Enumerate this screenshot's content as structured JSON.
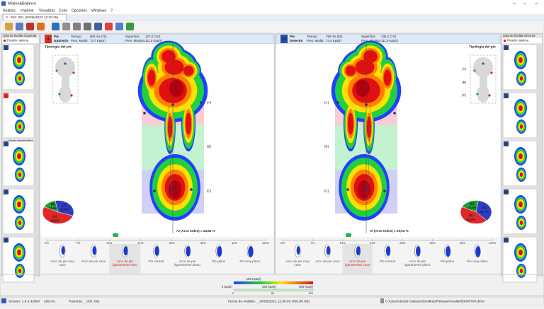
{
  "window": {
    "title": "Motion&Balance"
  },
  "menu": [
    "Análisis",
    "Imprimir",
    "Visualizar",
    "Color",
    "Opciones",
    "Windows",
    "?"
  ],
  "tab": "0 - 002: 001 (20/05/2022 12:30:45)",
  "left_list": {
    "title": "Lista de huellas izquierda",
    "mode": "Presión máxima",
    "items": [
      "3",
      "4",
      "6",
      "7",
      "8"
    ],
    "caption": "Huella característica"
  },
  "right_list": {
    "title": "Lista de huellas derecha",
    "mode": "Presión máxima",
    "items": [
      "3",
      "5",
      "8",
      "10",
      "13"
    ]
  },
  "feet": [
    {
      "number": "4",
      "color": "#d83020",
      "side": [
        "Pie",
        "Izquierdo"
      ],
      "stats": [
        [
          "Tiempo:",
          "800 ms (72)"
        ],
        [
          "Superficie:",
          "127,0 Cm2"
        ],
        [
          "Pres. Media:",
          "73,7 Kpa(r)"
        ],
        [
          "Pres. Máxima:",
          "111,0 Kpa(r)"
        ]
      ],
      "typology": "Tipología del pie",
      "zones": [
        "(A)",
        "(B)",
        "(C)"
      ],
      "pie": [
        {
          "name": "(B)",
          "value": 14.6,
          "value_label": "14,6%",
          "color": "#1e9e2e"
        },
        {
          "name": "(C)",
          "value": 32.9,
          "value_label": "32,9%",
          "color": "#2a3ec8"
        },
        {
          "name": "(A)",
          "value": 52.5,
          "value_label": "52,5%",
          "color": "#e02828"
        }
      ],
      "arch_index": "AI (Arco Index) = 34,55 %"
    },
    {
      "number": "13",
      "color": "#2050b0",
      "side": [
        "Pie",
        "Derecho"
      ],
      "stats": [
        [
          "Tiempo:",
          "760 ms (62)"
        ],
        [
          "Superficie:",
          "136,2 Cm2"
        ],
        [
          "Pres. Media:",
          "74,4 Kpa(r)"
        ],
        [
          "Pres. Máxima:",
          "111,0 Kpa(r)"
        ]
      ],
      "typology": "Tipología del pie",
      "zones": [
        "(A)",
        "(B)",
        "(C)"
      ],
      "pie": [
        {
          "name": "(B)",
          "value": 20.0,
          "value_label": "20,0%",
          "color": "#1e9e2e"
        },
        {
          "name": "(C)",
          "value": 35.3,
          "value_label": "35,3%",
          "color": "#2a3ec8"
        },
        {
          "name": "(A)",
          "value": 44.7,
          "value_label": "44,7%",
          "color": "#e02828"
        }
      ],
      "arch_index": "AI (Arco Index) = 20,03 %"
    }
  ],
  "scale_ticks": [
    "0%",
    "7%",
    "14%",
    "21%",
    "28%",
    "35%",
    "42%",
    "100%"
  ],
  "foot_types": [
    "Arco de pie muy cavo",
    "Arco de pie cavo",
    "Arco de pie ligeramente cavo",
    "Pie normal",
    "Arco de pie ligeramente plano",
    "Pie plano",
    "Pie muy plano"
  ],
  "highlight_type": 2,
  "legend": {
    "top": "100 Kpa(r)",
    "left": "0 Kpa(r)",
    "mid": "250 Kpa(r)",
    "right": "500 Kpa(r)",
    "bottom": [
      "0",
      "50",
      "100"
    ]
  },
  "status": [
    "Version: 1.6.5.32800",
    "256 ms",
    "Paciente: _ 002: 001",
    "Fecha de Análisis: _ 20/05/2022 12:30:45 (435,80 KB)",
    "C:\\Users\\Jesús Galeano\\Desktop\\Release\\Analisi\\50008704.dmm"
  ]
}
